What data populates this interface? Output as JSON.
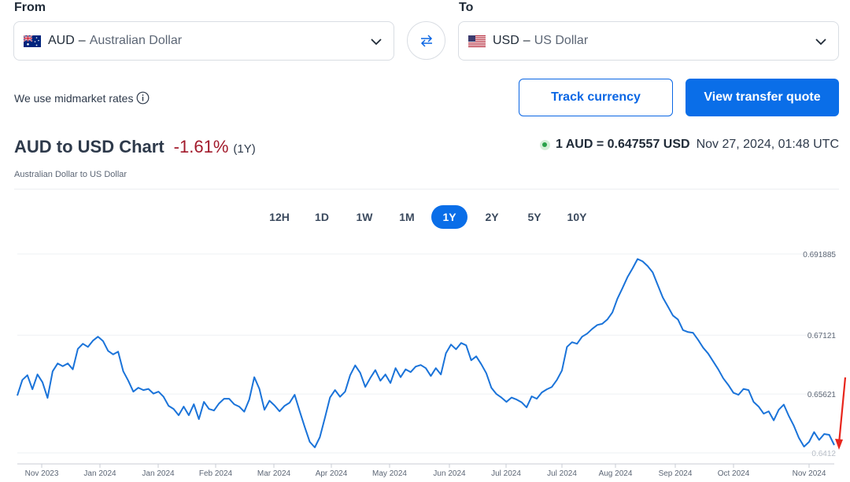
{
  "from": {
    "label": "From",
    "code": "AUD",
    "dash": "–",
    "name": "Australian Dollar",
    "flag_icon": "australia-flag-icon"
  },
  "to": {
    "label": "To",
    "code": "USD",
    "dash": "–",
    "name": "US Dollar",
    "flag_icon": "us-flag-icon"
  },
  "swap_icon": "swap-arrows-icon",
  "midmarket_text": "We use midmarket rates",
  "buttons": {
    "track": "Track currency",
    "quote": "View transfer quote"
  },
  "title": {
    "main": "AUD to USD Chart",
    "change": "-1.61%",
    "period": "(1Y)",
    "subtitle": "Australian Dollar to US Dollar"
  },
  "rate": {
    "value": "1 AUD = 0.647557 USD",
    "timestamp": "Nov 27, 2024, 01:48 UTC"
  },
  "periods": [
    "12H",
    "1D",
    "1W",
    "1M",
    "1Y",
    "2Y",
    "5Y",
    "10Y"
  ],
  "active_period": "1Y",
  "colors": {
    "accent": "#0a6ee8",
    "negative": "#a21a2b",
    "line": "#1a73d9",
    "grid": "#eef0f3",
    "status": "#2aa14a"
  },
  "chart_data": {
    "type": "line",
    "y_tick_labels": [
      "0.691885",
      "0.67121",
      "0.65621",
      "0.6412"
    ],
    "y_ticks": [
      0.691885,
      0.67121,
      0.65621,
      0.6412
    ],
    "ylim": [
      0.6412,
      0.691885
    ],
    "x_tick_labels": [
      "Nov 2023",
      "Jan 2024",
      "Jan 2024",
      "Feb 2024",
      "Mar 2024",
      "Apr 2024",
      "May 2024",
      "Jun 2024",
      "Jul 2024",
      "Jul 2024",
      "Aug 2024",
      "Sep 2024",
      "Oct 2024",
      "Nov 2024"
    ],
    "grid": true,
    "values": [
      0.6558,
      0.6598,
      0.661,
      0.6574,
      0.6612,
      0.6592,
      0.6552,
      0.662,
      0.664,
      0.6633,
      0.664,
      0.6625,
      0.6677,
      0.669,
      0.6682,
      0.6698,
      0.6708,
      0.6697,
      0.6672,
      0.6663,
      0.667,
      0.662,
      0.6596,
      0.6568,
      0.6578,
      0.6572,
      0.6575,
      0.6563,
      0.6568,
      0.6555,
      0.6532,
      0.6524,
      0.6508,
      0.653,
      0.6508,
      0.6536,
      0.6498,
      0.6542,
      0.6524,
      0.652,
      0.6538,
      0.655,
      0.655,
      0.6536,
      0.653,
      0.6517,
      0.6548,
      0.6605,
      0.6575,
      0.6522,
      0.6545,
      0.6533,
      0.6518,
      0.6532,
      0.654,
      0.656,
      0.6518,
      0.6478,
      0.644,
      0.6426,
      0.6452,
      0.6502,
      0.6553,
      0.6572,
      0.6555,
      0.6568,
      0.661,
      0.6635,
      0.6616,
      0.658,
      0.6603,
      0.6623,
      0.6596,
      0.6612,
      0.659,
      0.6628,
      0.6605,
      0.6625,
      0.6618,
      0.6632,
      0.6636,
      0.6628,
      0.6608,
      0.6628,
      0.6612,
      0.6666,
      0.6688,
      0.6676,
      0.6692,
      0.6686,
      0.6648,
      0.6658,
      0.6638,
      0.6615,
      0.6578,
      0.6562,
      0.6553,
      0.6542,
      0.6553,
      0.6548,
      0.6541,
      0.6528,
      0.6556,
      0.655,
      0.6566,
      0.6574,
      0.658,
      0.6598,
      0.6622,
      0.6682,
      0.6694,
      0.669,
      0.6708,
      0.6716,
      0.6728,
      0.6738,
      0.6741,
      0.6752,
      0.677,
      0.6805,
      0.6832,
      0.686,
      0.6882,
      0.6906,
      0.69,
      0.6888,
      0.6872,
      0.684,
      0.6808,
      0.6785,
      0.6762,
      0.6752,
      0.6725,
      0.672,
      0.6718,
      0.67,
      0.668,
      0.6665,
      0.6645,
      0.6625,
      0.6602,
      0.6585,
      0.6565,
      0.656,
      0.6575,
      0.6572,
      0.6542,
      0.653,
      0.6512,
      0.6518,
      0.6495,
      0.6522,
      0.6535,
      0.6506,
      0.6481,
      0.645,
      0.6428,
      0.644,
      0.6465,
      0.6445,
      0.646,
      0.6458,
      0.6432
    ]
  }
}
